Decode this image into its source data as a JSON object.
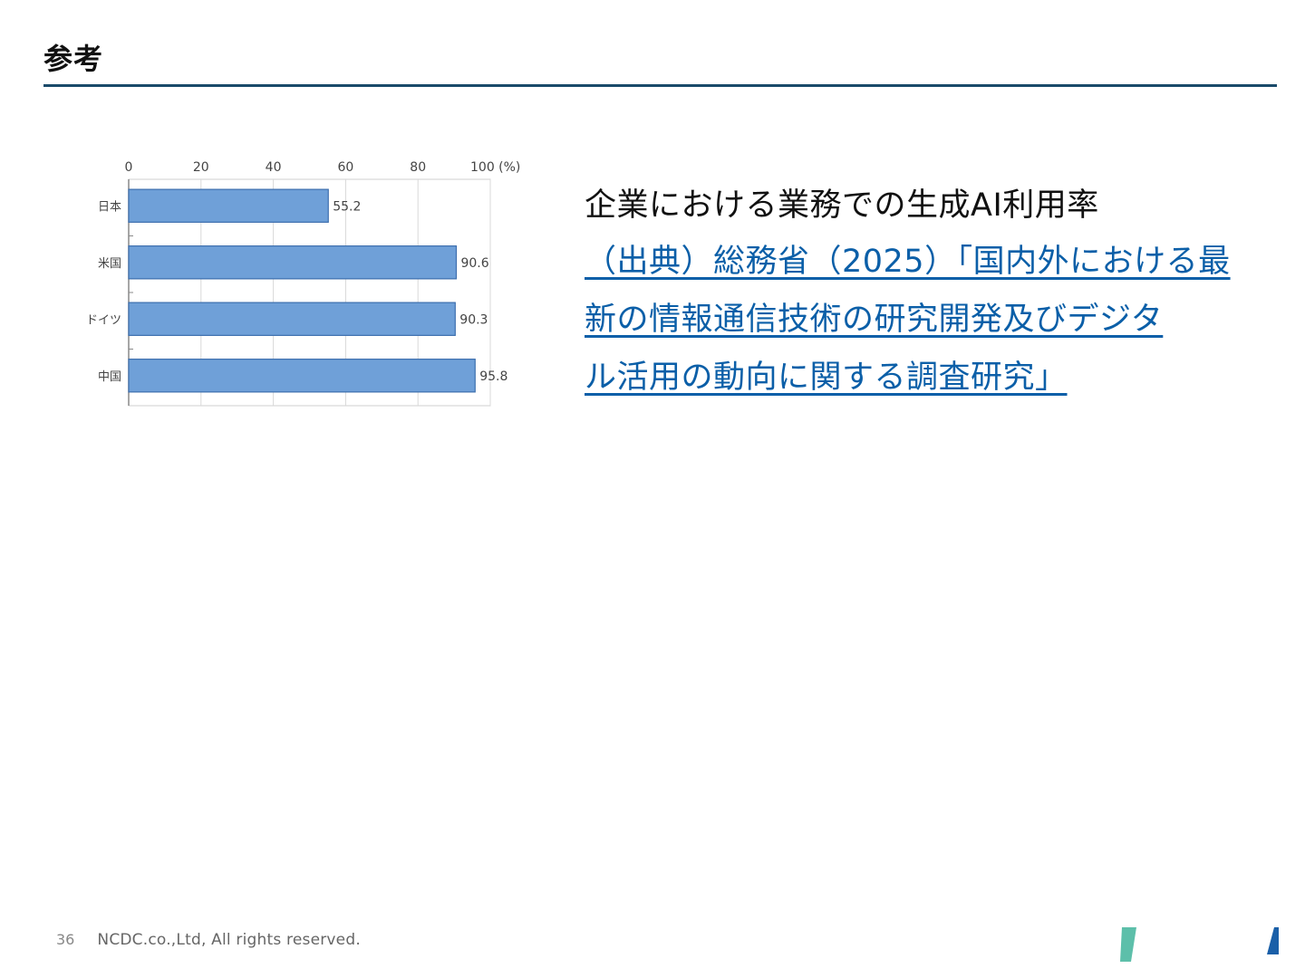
{
  "slide": {
    "title": "参考"
  },
  "caption": {
    "title": "企業における業務での生成AI利用率",
    "source_lines": [
      "（出典）総務省（2025）「国内外における最",
      "新の情報通信技術の研究開発及びデジタ",
      "ル活用の動向に関する調査研究」"
    ]
  },
  "chart_data": {
    "type": "bar",
    "orientation": "horizontal",
    "categories": [
      "日本",
      "米国",
      "ドイツ",
      "中国"
    ],
    "values": [
      55.2,
      90.6,
      90.3,
      95.8
    ],
    "value_labels": [
      "55.2",
      "90.6",
      "90.3",
      "95.8"
    ],
    "x_ticks": [
      "0",
      "20",
      "40",
      "60",
      "80",
      "100 (%)"
    ],
    "xlim": [
      0,
      100
    ],
    "axis_position": "top",
    "grid": true,
    "colors": {
      "bar_fill": "#6fa0d8",
      "bar_stroke": "#3d6fae",
      "grid": "#d9d9d9"
    }
  },
  "footer": {
    "page_number": "36",
    "copyright": "NCDC.co.,Ltd, All rights reserved."
  },
  "logo": {
    "colors": [
      "#5dbfaa",
      "#1a5fa8"
    ]
  }
}
